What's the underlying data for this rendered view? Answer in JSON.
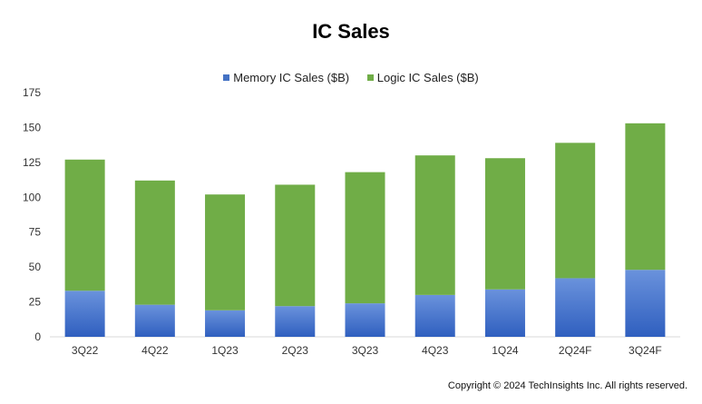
{
  "chart_data": {
    "type": "bar",
    "stacked": true,
    "title": "IC Sales",
    "categories": [
      "3Q22",
      "4Q22",
      "1Q23",
      "2Q23",
      "3Q23",
      "4Q23",
      "1Q24",
      "2Q24F",
      "3Q24F"
    ],
    "series": [
      {
        "name": "Memory IC Sales ($B)",
        "color": "#4472C4",
        "values": [
          33,
          23,
          19,
          22,
          24,
          30,
          34,
          42,
          48
        ]
      },
      {
        "name": "Logic IC Sales ($B)",
        "color": "#70AD47",
        "values": [
          94,
          89,
          83,
          87,
          94,
          100,
          94,
          97,
          105
        ]
      }
    ],
    "yticks": [
      0,
      25,
      50,
      75,
      100,
      125,
      150,
      175
    ],
    "ylim": [
      0,
      175
    ],
    "grid": false,
    "legend_position": "top"
  },
  "footer": {
    "copyright": "Copyright © 2024 TechInsights Inc.  All rights reserved."
  }
}
